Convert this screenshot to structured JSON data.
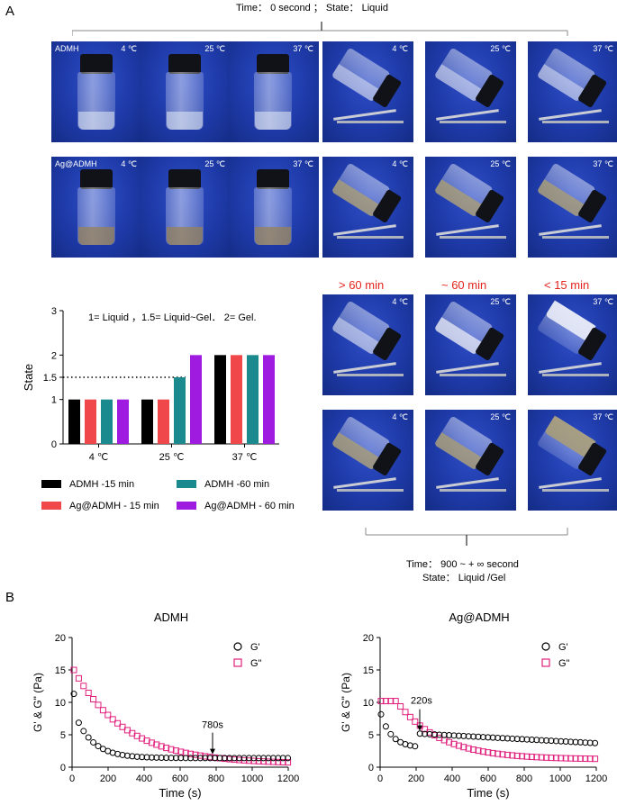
{
  "panel_a": {
    "letter": "A",
    "top_caption": "Time： 0 second ； State： Liquid",
    "bottom_caption_line1": "Time： 900 ~ + ∞ second",
    "bottom_caption_line2": "State： Liquid /Gel",
    "row1_name": "ADMH",
    "row2_name": "Ag@ADMH",
    "temps": [
      "4 ℃",
      "25 ℃",
      "37 ℃"
    ],
    "times": [
      "> 60 min",
      "~ 60 min",
      "< 15 min"
    ],
    "colors": {
      "photo_bg": "#1e3aa8",
      "red_label": "#e3241c"
    }
  },
  "panel_b": {
    "letter": "B"
  },
  "chart_data": [
    {
      "type": "bar",
      "annotation": "1= Liquid ，1.5= Liquid~Gel． 2= Gel.",
      "ylabel": "State",
      "ylim": [
        0,
        3
      ],
      "yticks": [
        "0",
        "1",
        "1.5",
        "2",
        "3"
      ],
      "dotted_reference": 1.5,
      "categories": [
        "4 ℃",
        "25 ℃",
        "37 ℃"
      ],
      "series": [
        {
          "name": "ADMH -15 min",
          "color": "#000000",
          "values": [
            1,
            1,
            2
          ]
        },
        {
          "name": "Ag@ADMH - 15 min",
          "color": "#f0474a",
          "values": [
            1,
            1,
            2
          ]
        },
        {
          "name": "ADMH -60 min",
          "color": "#1a8a8e",
          "values": [
            1,
            1.5,
            2
          ]
        },
        {
          "name": "Ag@ADMH - 60 min",
          "color": "#a01be0",
          "values": [
            1,
            2,
            2
          ]
        }
      ],
      "legend": "below"
    },
    {
      "type": "scatter",
      "title": "ADMH",
      "xlabel": "Time (s)",
      "ylabel": "G' & G\" (Pa)",
      "xlim": [
        0,
        1200
      ],
      "ylim": [
        0,
        20
      ],
      "xticks": [
        "0",
        "200",
        "400",
        "600",
        "800",
        "1000",
        "1200"
      ],
      "yticks": [
        "0",
        "5",
        "10",
        "15",
        "20"
      ],
      "annotation": "780s",
      "arrow_x": 780,
      "legend": "top-right",
      "series": [
        {
          "name": "G'",
          "marker": "circle",
          "color": "#000000",
          "model": {
            "plateau": 1.4,
            "amp": 7.9,
            "tau": 100,
            "start": 10,
            "end": 1200,
            "step": 27,
            "peak_y": 11.3
          }
        },
        {
          "name": "G\"",
          "marker": "square",
          "color": "#e01f7d",
          "model": {
            "plateau": 0.5,
            "amp": 15.0,
            "tau": 290,
            "start": 10,
            "end": 1200,
            "step": 27
          }
        }
      ]
    },
    {
      "type": "scatter",
      "title": "Ag@ADMH",
      "xlabel": "Time (s)",
      "ylabel": "G' & G\" (Pa)",
      "xlim": [
        0,
        1200
      ],
      "ylim": [
        0,
        20
      ],
      "xticks": [
        "0",
        "200",
        "400",
        "600",
        "800",
        "1000",
        "1200"
      ],
      "yticks": [
        "0",
        "5",
        "10",
        "15",
        "20"
      ],
      "annotation": "220s",
      "arrow_x": 220,
      "legend": "top-right",
      "series": [
        {
          "name": "G'",
          "marker": "circle",
          "color": "#000000",
          "model": {
            "plateau": 3.0,
            "amp": 5.6,
            "tau": 60,
            "start": 5,
            "end": 1200,
            "step": 27,
            "tail": 0.0015,
            "tail_from": 200
          }
        },
        {
          "name": "G\"",
          "marker": "square",
          "color": "#e01f7d",
          "model": {
            "plateau": 1.2,
            "amp": 9.0,
            "tau": 240,
            "start": 5,
            "end": 1200,
            "step": 27,
            "flat_until": 90,
            "flat": 10.2
          }
        }
      ]
    }
  ]
}
